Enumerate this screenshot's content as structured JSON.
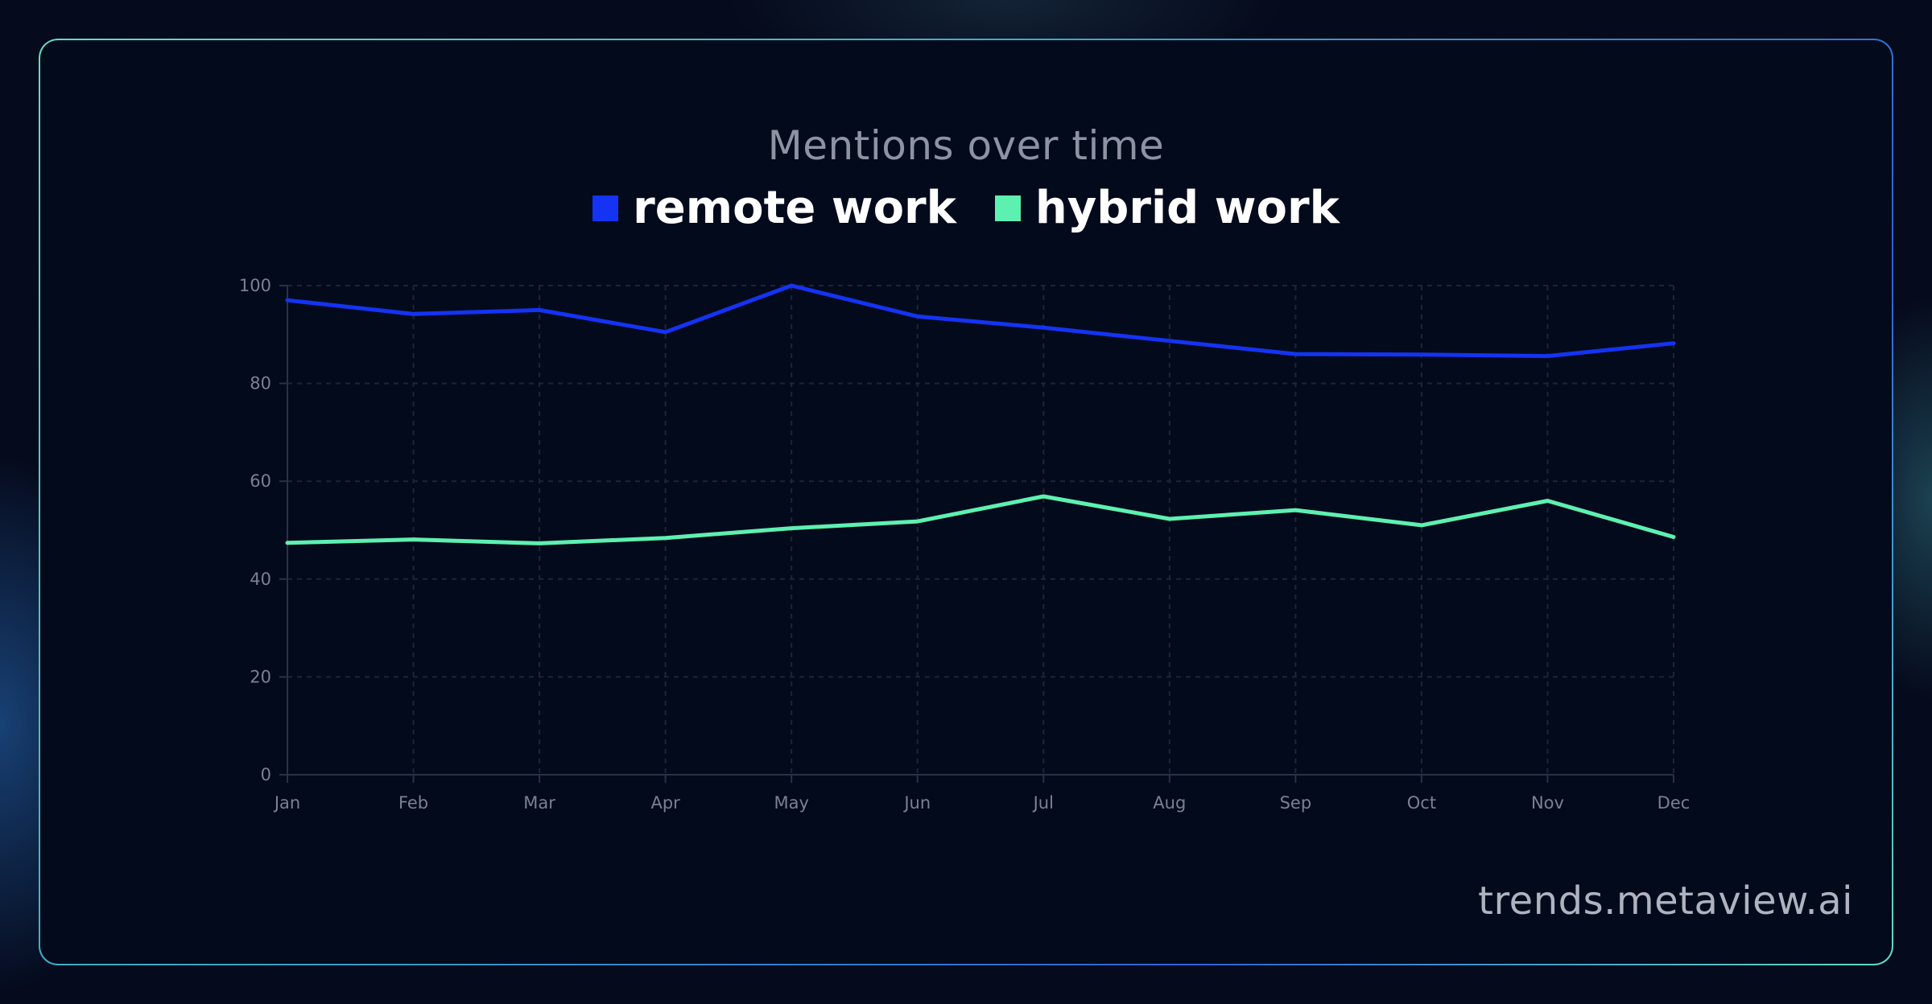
{
  "chart_data": {
    "type": "line",
    "title": "Mentions over time",
    "xlabel": "",
    "ylabel": "",
    "categories": [
      "Jan",
      "Feb",
      "Mar",
      "Apr",
      "May",
      "Jun",
      "Jul",
      "Aug",
      "Sep",
      "Oct",
      "Nov",
      "Dec"
    ],
    "yticks": [
      0,
      20,
      40,
      60,
      80,
      100
    ],
    "ylim": [
      0,
      100
    ],
    "grid": true,
    "legend_position": "top-center",
    "series": [
      {
        "name": "remote work",
        "color": "#1433f2",
        "values": [
          97,
          94.2,
          95,
          90.5,
          100,
          93.7,
          91.4,
          88.7,
          86,
          85.9,
          85.6,
          88.2
        ]
      },
      {
        "name": "hybrid work",
        "color": "#5ef0b0",
        "values": [
          47.4,
          48.1,
          47.3,
          48.4,
          50.4,
          51.8,
          56.9,
          52.3,
          54.1,
          51,
          56,
          48.6
        ]
      }
    ]
  },
  "watermark": "trends.metaview.ai"
}
